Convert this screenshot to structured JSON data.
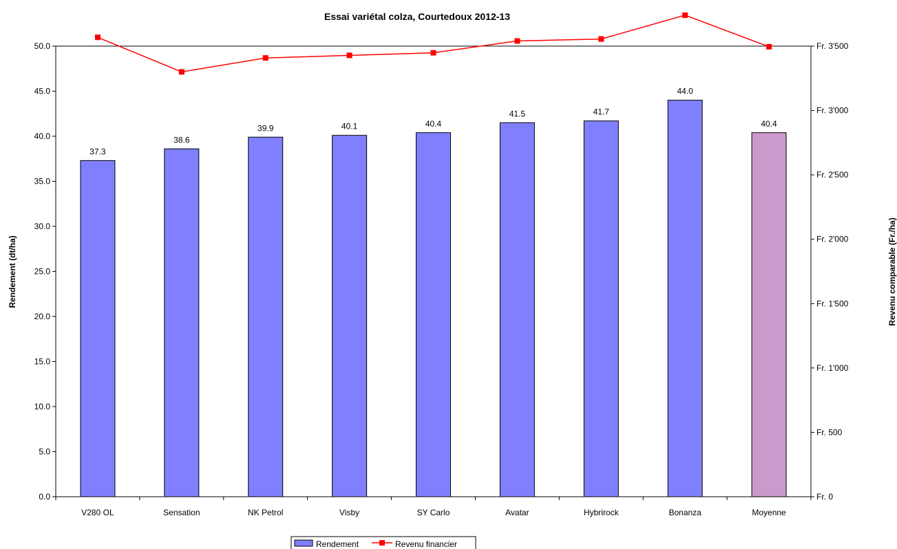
{
  "chart_data": {
    "type": "bar",
    "title": "Essai variétal colza, Courtedoux 2012-13",
    "ylabel": "Rendement (dt/ha)",
    "y2label": "Revenu comparable (Fr./ha)",
    "categories": [
      "V280 OL",
      "Sensation",
      "NK Petrol",
      "Visby",
      "SY Carlo",
      "Avatar",
      "Hybrirock",
      "Bonanza",
      "Moyenne"
    ],
    "ylim": [
      0,
      50
    ],
    "y2lim": [
      0,
      3500
    ],
    "y_ticks": [
      "0.0",
      "5.0",
      "10.0",
      "15.0",
      "20.0",
      "25.0",
      "30.0",
      "35.0",
      "40.0",
      "45.0",
      "50.0"
    ],
    "y2_ticks": [
      "Fr. 0",
      "Fr. 500",
      "Fr. 1'000",
      "Fr. 1'500",
      "Fr. 2'000",
      "Fr. 2'500",
      "Fr. 3'000",
      "Fr. 3'500"
    ],
    "series": [
      {
        "name": "Rendement",
        "kind": "bar",
        "axis": "left",
        "values": [
          37.3,
          38.6,
          39.9,
          40.1,
          40.4,
          41.5,
          41.7,
          44.0,
          40.4
        ],
        "labels": [
          "37.3",
          "38.6",
          "39.9",
          "40.1",
          "40.4",
          "41.5",
          "41.7",
          "44.0",
          "40.4"
        ],
        "color": "#8080ff",
        "highlight_color": "#cc99cc",
        "highlight_index": 8
      },
      {
        "name": "Revenu financier",
        "kind": "line",
        "axis": "right",
        "values": [
          3568,
          3300,
          3408,
          3428,
          3448,
          3540,
          3555,
          3740,
          3495
        ],
        "color": "#ff0000"
      }
    ],
    "grid": false,
    "legend": "bottom-center"
  }
}
